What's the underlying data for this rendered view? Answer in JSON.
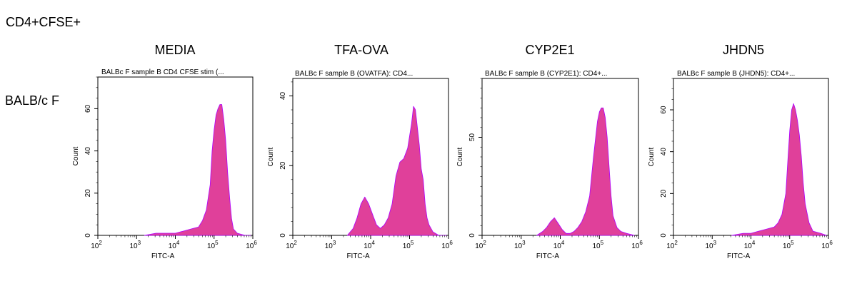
{
  "figure_label": "CD4+CFSE+",
  "row_label": "BALB/c F",
  "colors": {
    "fill": "#e0409a",
    "outline": "#b000ff",
    "axis": "#000000"
  },
  "chart_data": [
    {
      "type": "histogram",
      "condition": "MEDIA",
      "title": "BALBc F sample B CD4 CFSE stim (...",
      "xlabel": "FITC-A",
      "ylabel": "Count",
      "xscale": "log",
      "xlim_log10": [
        2,
        6
      ],
      "xticks": [
        {
          "exp": 2,
          "label": "10",
          "sup": "2"
        },
        {
          "exp": 3,
          "label": "10",
          "sup": "3"
        },
        {
          "exp": 4,
          "label": "10",
          "sup": "4"
        },
        {
          "exp": 5,
          "label": "10",
          "sup": "5"
        },
        {
          "exp": 6,
          "label": "10",
          "sup": "6"
        }
      ],
      "ylim": [
        0,
        75
      ],
      "yticks": [
        0,
        20,
        40,
        60
      ],
      "series": [
        {
          "name": "CD4+CFSE+",
          "log10_x": [
            3.2,
            3.5,
            3.8,
            4.0,
            4.2,
            4.4,
            4.6,
            4.7,
            4.8,
            4.9,
            4.95,
            5.0,
            5.05,
            5.1,
            5.15,
            5.2,
            5.25,
            5.3,
            5.35,
            5.4,
            5.45,
            5.5,
            5.6,
            5.8,
            5.95
          ],
          "counts": [
            0,
            1,
            1,
            1,
            2,
            3,
            4,
            7,
            12,
            24,
            40,
            50,
            57,
            60,
            62,
            62,
            55,
            45,
            30,
            18,
            8,
            3,
            1,
            0,
            0
          ]
        }
      ]
    },
    {
      "type": "histogram",
      "condition": "TFA-OVA",
      "title": "BALBc F sample B (OVATFA): CD4...",
      "xlabel": "FITC-A",
      "ylabel": "Count",
      "xscale": "log",
      "xlim_log10": [
        2,
        6
      ],
      "xticks": [
        {
          "exp": 2,
          "label": "10",
          "sup": "2"
        },
        {
          "exp": 3,
          "label": "10",
          "sup": "3"
        },
        {
          "exp": 4,
          "label": "10",
          "sup": "4"
        },
        {
          "exp": 5,
          "label": "10",
          "sup": "5"
        },
        {
          "exp": 6,
          "label": "10",
          "sup": "6"
        }
      ],
      "ylim": [
        0,
        45
      ],
      "yticks": [
        0,
        20,
        40
      ],
      "series": [
        {
          "name": "CD4+CFSE+",
          "log10_x": [
            3.4,
            3.55,
            3.65,
            3.75,
            3.85,
            3.95,
            4.05,
            4.15,
            4.25,
            4.35,
            4.45,
            4.55,
            4.65,
            4.75,
            4.85,
            4.95,
            5.05,
            5.1,
            5.15,
            5.2,
            5.25,
            5.3,
            5.35,
            5.4,
            5.45,
            5.5,
            5.6,
            5.75,
            5.95
          ],
          "counts": [
            0,
            2,
            5,
            9,
            11,
            9,
            6,
            3,
            2,
            3,
            5,
            9,
            17,
            21,
            22,
            25,
            32,
            37,
            36,
            31,
            26,
            19,
            16,
            9,
            5,
            3,
            1,
            0,
            0
          ]
        }
      ]
    },
    {
      "type": "histogram",
      "condition": "CYP2E1",
      "title": "BALBc F sample B (CYP2E1): CD4+...",
      "xlabel": "FITC-A",
      "ylabel": "Count",
      "xscale": "log",
      "xlim_log10": [
        2,
        6
      ],
      "xticks": [
        {
          "exp": 2,
          "label": "10",
          "sup": "2"
        },
        {
          "exp": 3,
          "label": "10",
          "sup": "3"
        },
        {
          "exp": 4,
          "label": "10",
          "sup": "4"
        },
        {
          "exp": 5,
          "label": "10",
          "sup": "5"
        },
        {
          "exp": 6,
          "label": "10",
          "sup": "6"
        }
      ],
      "ylim": [
        0,
        80
      ],
      "yticks": [
        0,
        50
      ],
      "series": [
        {
          "name": "CD4+CFSE+",
          "log10_x": [
            3.4,
            3.55,
            3.65,
            3.75,
            3.85,
            3.95,
            4.05,
            4.15,
            4.25,
            4.35,
            4.45,
            4.55,
            4.65,
            4.75,
            4.85,
            4.95,
            5.0,
            5.05,
            5.1,
            5.15,
            5.2,
            5.25,
            5.3,
            5.35,
            5.45,
            5.55,
            5.7,
            5.9
          ],
          "counts": [
            0,
            2,
            4,
            7,
            9,
            6,
            3,
            1,
            1,
            2,
            4,
            7,
            12,
            20,
            40,
            58,
            63,
            65,
            65,
            60,
            50,
            35,
            20,
            10,
            4,
            2,
            1,
            0
          ]
        }
      ]
    },
    {
      "type": "histogram",
      "condition": "JHDN5",
      "title": "BALBc F sample B (JHDN5): CD4+...",
      "xlabel": "FITC-A",
      "ylabel": "Count",
      "xscale": "log",
      "xlim_log10": [
        2,
        6
      ],
      "xticks": [
        {
          "exp": 2,
          "label": "10",
          "sup": "2"
        },
        {
          "exp": 3,
          "label": "10",
          "sup": "3"
        },
        {
          "exp": 4,
          "label": "10",
          "sup": "4"
        },
        {
          "exp": 5,
          "label": "10",
          "sup": "5"
        },
        {
          "exp": 6,
          "label": "10",
          "sup": "6"
        }
      ],
      "ylim": [
        0,
        75
      ],
      "yticks": [
        0,
        20,
        40,
        60
      ],
      "series": [
        {
          "name": "CD4+CFSE+",
          "log10_x": [
            3.5,
            3.8,
            4.0,
            4.2,
            4.4,
            4.6,
            4.7,
            4.8,
            4.9,
            4.95,
            5.0,
            5.05,
            5.1,
            5.15,
            5.2,
            5.25,
            5.3,
            5.35,
            5.4,
            5.5,
            5.6,
            5.8,
            5.95
          ],
          "counts": [
            0,
            1,
            1,
            2,
            3,
            4,
            6,
            10,
            20,
            35,
            50,
            60,
            63,
            60,
            55,
            48,
            38,
            25,
            15,
            6,
            2,
            1,
            0
          ]
        }
      ]
    }
  ]
}
